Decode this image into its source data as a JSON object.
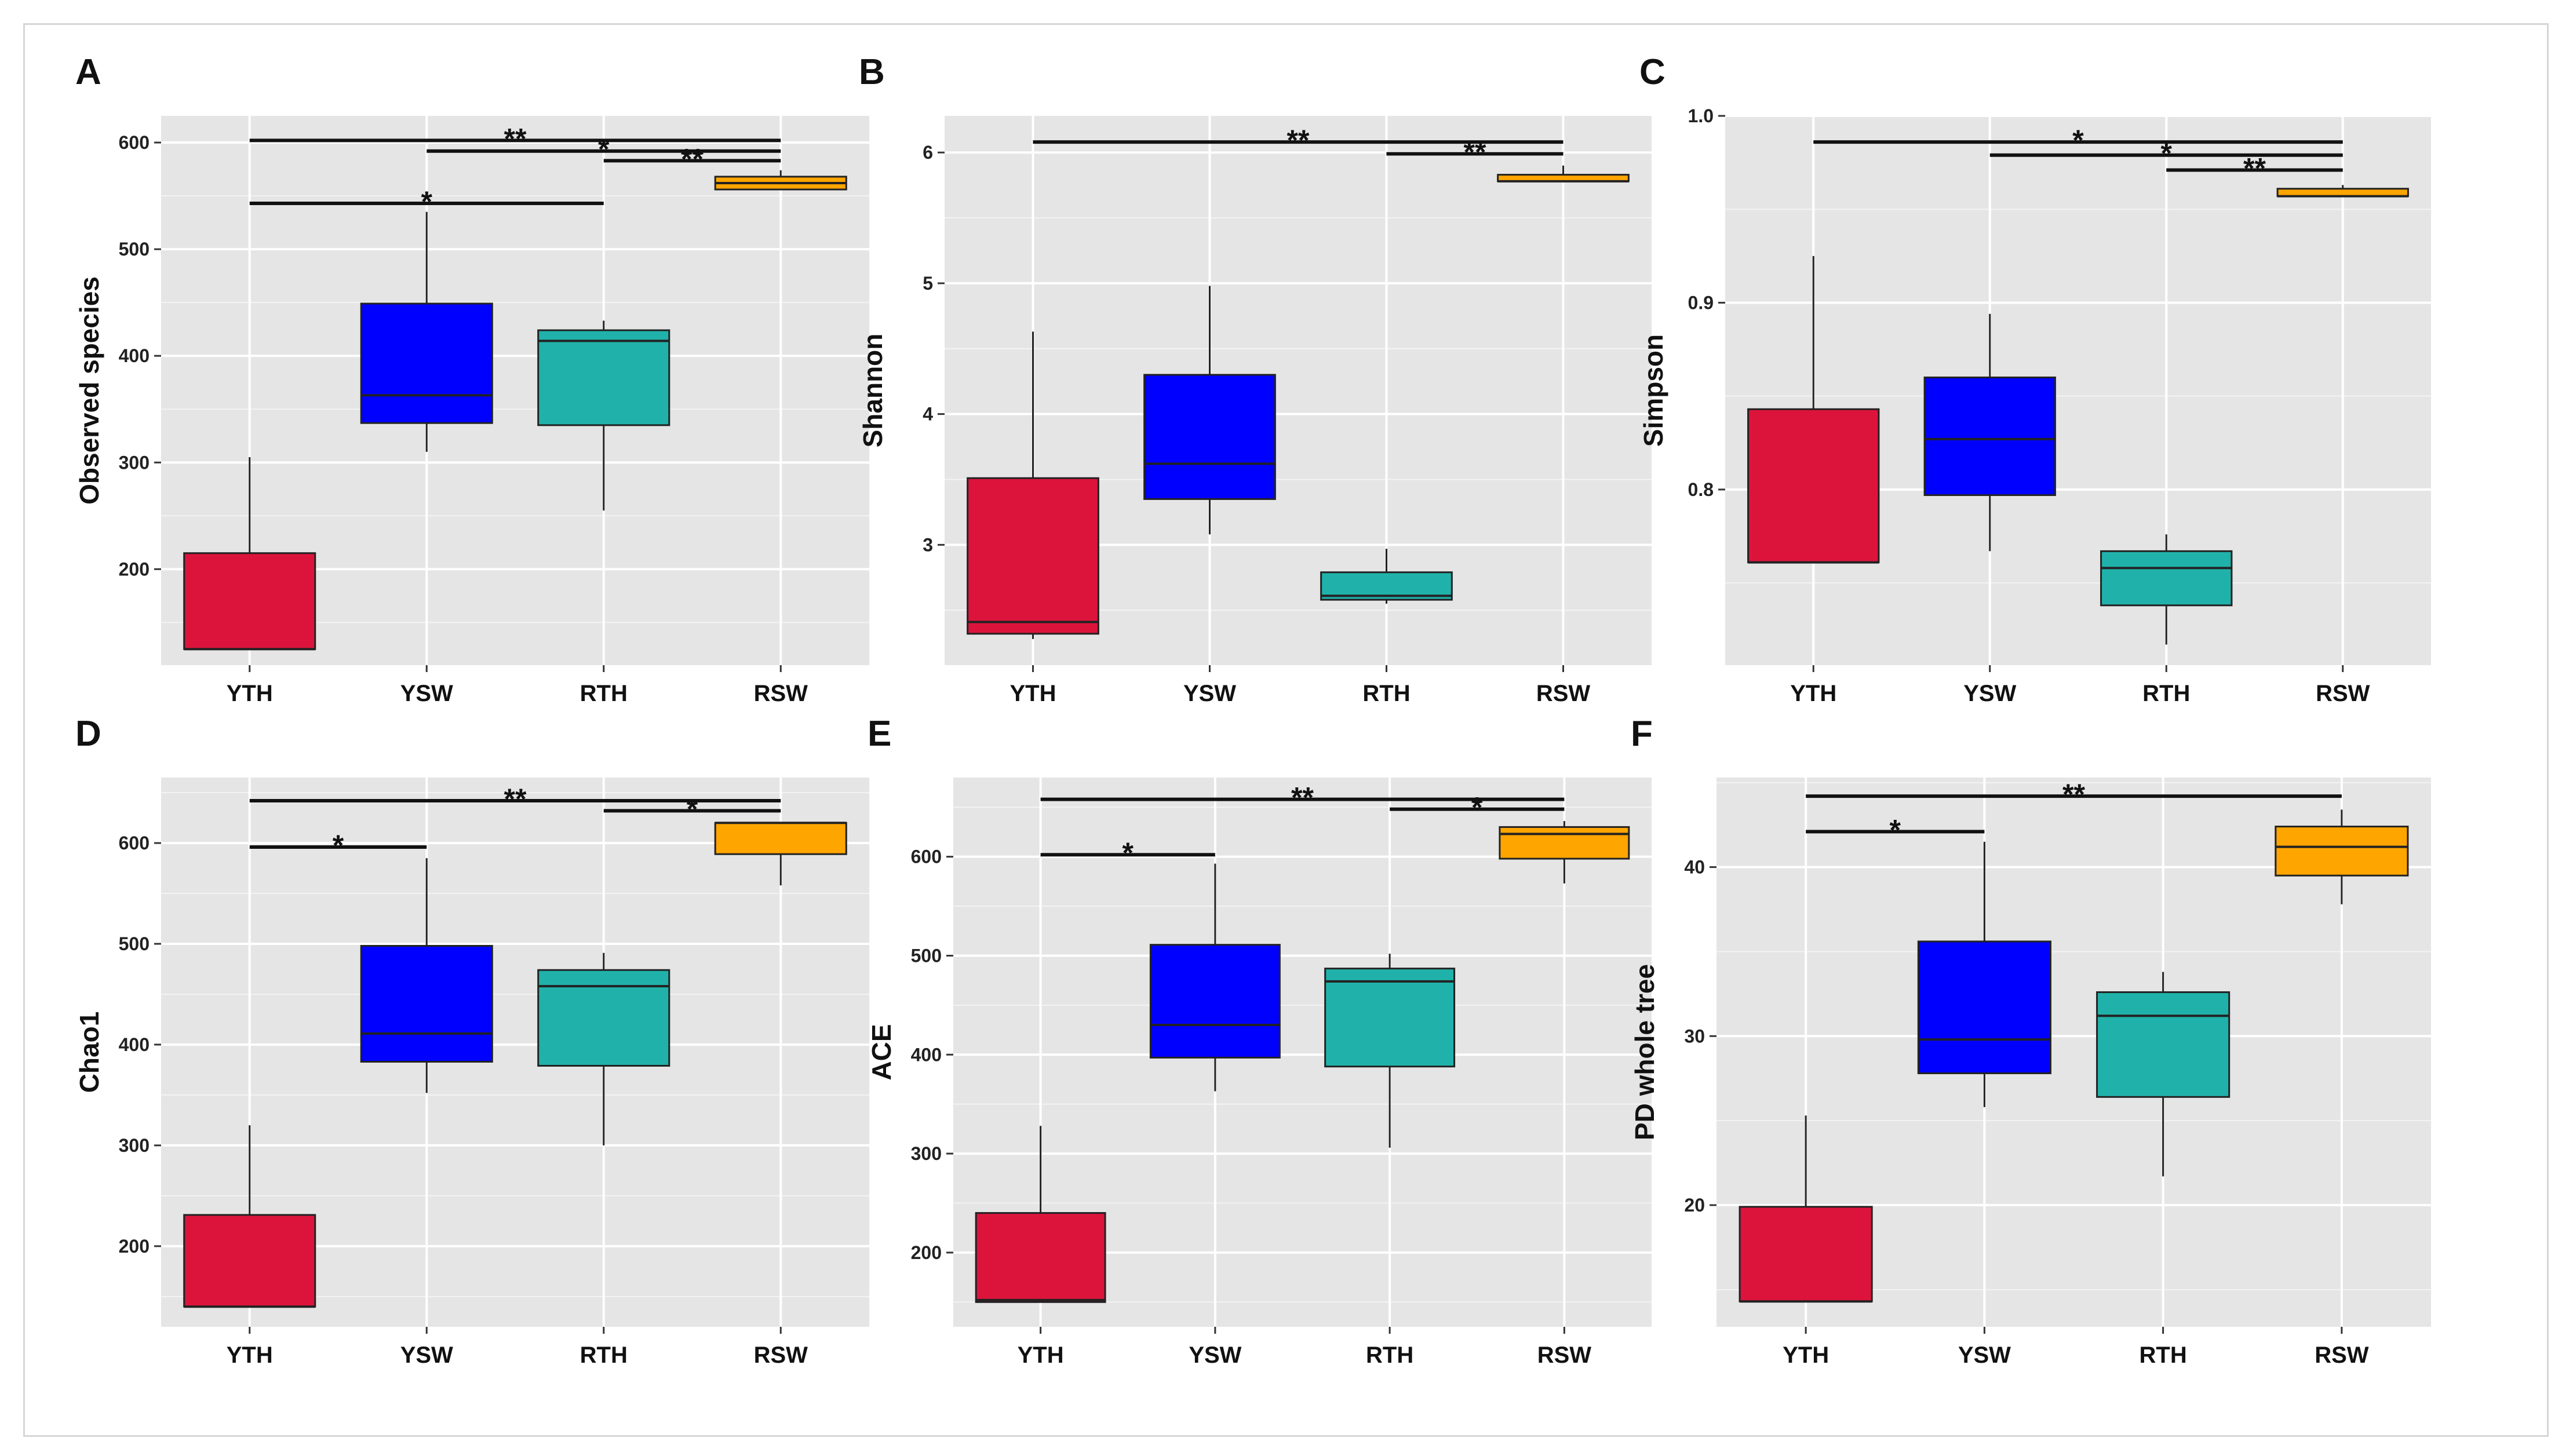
{
  "figure": {
    "groups": [
      "YTH",
      "YSW",
      "RTH",
      "RSW"
    ],
    "colors": {
      "YTH": "#dc143c",
      "YSW": "#0000ff",
      "RTH": "#20b2aa",
      "RSW": "#ffa500",
      "panel_bg": "#e5e5e5",
      "grid": "#ffffff"
    }
  },
  "chart_data": [
    {
      "type": "boxplot",
      "panel": "A",
      "ylabel": "Observed species",
      "ylim": [
        110,
        625
      ],
      "yticks": [
        200,
        300,
        400,
        500,
        600
      ],
      "categories": [
        "YTH",
        "YSW",
        "RTH",
        "RSW"
      ],
      "boxes": [
        {
          "group": "YTH",
          "min": 125,
          "q1": 125,
          "median": 125,
          "q3": 215,
          "max": 305
        },
        {
          "group": "YSW",
          "min": 310,
          "q1": 337,
          "median": 363,
          "q3": 449,
          "max": 535
        },
        {
          "group": "RTH",
          "min": 255,
          "q1": 335,
          "median": 414,
          "q3": 424,
          "max": 433
        },
        {
          "group": "RSW",
          "min": 556,
          "q1": 556,
          "median": 562,
          "q3": 568,
          "max": 574
        }
      ],
      "significance": [
        {
          "from": "YTH",
          "to": "RSW",
          "label": "**",
          "y": 602
        },
        {
          "from": "YSW",
          "to": "RSW",
          "label": "*",
          "y": 592
        },
        {
          "from": "RTH",
          "to": "RSW",
          "label": "**",
          "y": 583
        },
        {
          "from": "YTH",
          "to": "RTH",
          "label": "*",
          "y": 543
        }
      ]
    },
    {
      "type": "boxplot",
      "panel": "B",
      "ylabel": "Shannon",
      "ylim": [
        2.08,
        6.28
      ],
      "yticks": [
        3,
        4,
        5,
        6
      ],
      "categories": [
        "YTH",
        "YSW",
        "RTH",
        "RSW"
      ],
      "boxes": [
        {
          "group": "YTH",
          "min": 2.28,
          "q1": 2.32,
          "median": 2.41,
          "q3": 3.51,
          "max": 4.63
        },
        {
          "group": "YSW",
          "min": 3.08,
          "q1": 3.35,
          "median": 3.62,
          "q3": 4.3,
          "max": 4.98
        },
        {
          "group": "RTH",
          "min": 2.55,
          "q1": 2.58,
          "median": 2.61,
          "q3": 2.79,
          "max": 2.97
        },
        {
          "group": "RSW",
          "min": 5.78,
          "q1": 5.78,
          "median": 5.78,
          "q3": 5.83,
          "max": 5.9
        }
      ],
      "significance": [
        {
          "from": "YTH",
          "to": "RSW",
          "label": "**",
          "y": 6.08
        },
        {
          "from": "RTH",
          "to": "RSW",
          "label": "**",
          "y": 5.99
        }
      ]
    },
    {
      "type": "boxplot",
      "panel": "C",
      "ylabel": "Simpson",
      "ylim": [
        0.706,
        1.0
      ],
      "yticks": [
        0.8,
        0.9,
        1.0
      ],
      "categories": [
        "YTH",
        "YSW",
        "RTH",
        "RSW"
      ],
      "boxes": [
        {
          "group": "YTH",
          "min": 0.761,
          "q1": 0.761,
          "median": 0.761,
          "q3": 0.843,
          "max": 0.925
        },
        {
          "group": "YSW",
          "min": 0.767,
          "q1": 0.797,
          "median": 0.827,
          "q3": 0.86,
          "max": 0.894
        },
        {
          "group": "RTH",
          "min": 0.717,
          "q1": 0.738,
          "median": 0.758,
          "q3": 0.767,
          "max": 0.776
        },
        {
          "group": "RSW",
          "min": 0.957,
          "q1": 0.957,
          "median": 0.957,
          "q3": 0.961,
          "max": 0.963
        }
      ],
      "significance": [
        {
          "from": "YTH",
          "to": "RSW",
          "label": "*",
          "y": 0.986
        },
        {
          "from": "YSW",
          "to": "RSW",
          "label": "*",
          "y": 0.979
        },
        {
          "from": "RTH",
          "to": "RSW",
          "label": "**",
          "y": 0.971
        }
      ]
    },
    {
      "type": "boxplot",
      "panel": "D",
      "ylabel": "Chao1",
      "ylim": [
        120,
        665
      ],
      "yticks": [
        200,
        300,
        400,
        500,
        600
      ],
      "categories": [
        "YTH",
        "YSW",
        "RTH",
        "RSW"
      ],
      "boxes": [
        {
          "group": "YTH",
          "min": 140,
          "q1": 140,
          "median": 140,
          "q3": 231,
          "max": 320
        },
        {
          "group": "YSW",
          "min": 352,
          "q1": 383,
          "median": 411,
          "q3": 498,
          "max": 585
        },
        {
          "group": "RTH",
          "min": 300,
          "q1": 379,
          "median": 458,
          "q3": 474,
          "max": 491
        },
        {
          "group": "RSW",
          "min": 558,
          "q1": 589,
          "median": 620,
          "q3": 620,
          "max": 620
        }
      ],
      "significance": [
        {
          "from": "YTH",
          "to": "RSW",
          "label": "**",
          "y": 642
        },
        {
          "from": "RTH",
          "to": "RSW",
          "label": "*",
          "y": 632
        },
        {
          "from": "YTH",
          "to": "YSW",
          "label": "*",
          "y": 596
        }
      ]
    },
    {
      "type": "boxplot",
      "panel": "E",
      "ylabel": "ACE",
      "ylim": [
        125,
        680
      ],
      "yticks": [
        200,
        300,
        400,
        500,
        600
      ],
      "categories": [
        "YTH",
        "YSW",
        "RTH",
        "RSW"
      ],
      "boxes": [
        {
          "group": "YTH",
          "min": 150,
          "q1": 150,
          "median": 152,
          "q3": 240,
          "max": 328
        },
        {
          "group": "YSW",
          "min": 363,
          "q1": 397,
          "median": 430,
          "q3": 511,
          "max": 593
        },
        {
          "group": "RTH",
          "min": 306,
          "q1": 388,
          "median": 474,
          "q3": 487,
          "max": 502
        },
        {
          "group": "RSW",
          "min": 573,
          "q1": 598,
          "median": 623,
          "q3": 630,
          "max": 636
        }
      ],
      "significance": [
        {
          "from": "YTH",
          "to": "RSW",
          "label": "**",
          "y": 658
        },
        {
          "from": "RTH",
          "to": "RSW",
          "label": "*",
          "y": 648
        },
        {
          "from": "YTH",
          "to": "YSW",
          "label": "*",
          "y": 602
        }
      ]
    },
    {
      "type": "boxplot",
      "panel": "F",
      "ylabel": "PD whole tree",
      "ylim": [
        12.8,
        45.3
      ],
      "yticks": [
        20,
        30,
        40
      ],
      "categories": [
        "YTH",
        "YSW",
        "RTH",
        "RSW"
      ],
      "boxes": [
        {
          "group": "YTH",
          "min": 14.3,
          "q1": 14.3,
          "median": 14.3,
          "q3": 19.9,
          "max": 25.3
        },
        {
          "group": "YSW",
          "min": 25.8,
          "q1": 27.8,
          "median": 29.8,
          "q3": 35.6,
          "max": 41.5
        },
        {
          "group": "RTH",
          "min": 21.7,
          "q1": 26.4,
          "median": 31.2,
          "q3": 32.6,
          "max": 33.8
        },
        {
          "group": "RSW",
          "min": 37.8,
          "q1": 39.5,
          "median": 41.2,
          "q3": 42.4,
          "max": 43.4
        }
      ],
      "significance": [
        {
          "from": "YTH",
          "to": "RSW",
          "label": "**",
          "y": 44.2
        },
        {
          "from": "YTH",
          "to": "YSW",
          "label": "*",
          "y": 42.1
        }
      ]
    }
  ]
}
